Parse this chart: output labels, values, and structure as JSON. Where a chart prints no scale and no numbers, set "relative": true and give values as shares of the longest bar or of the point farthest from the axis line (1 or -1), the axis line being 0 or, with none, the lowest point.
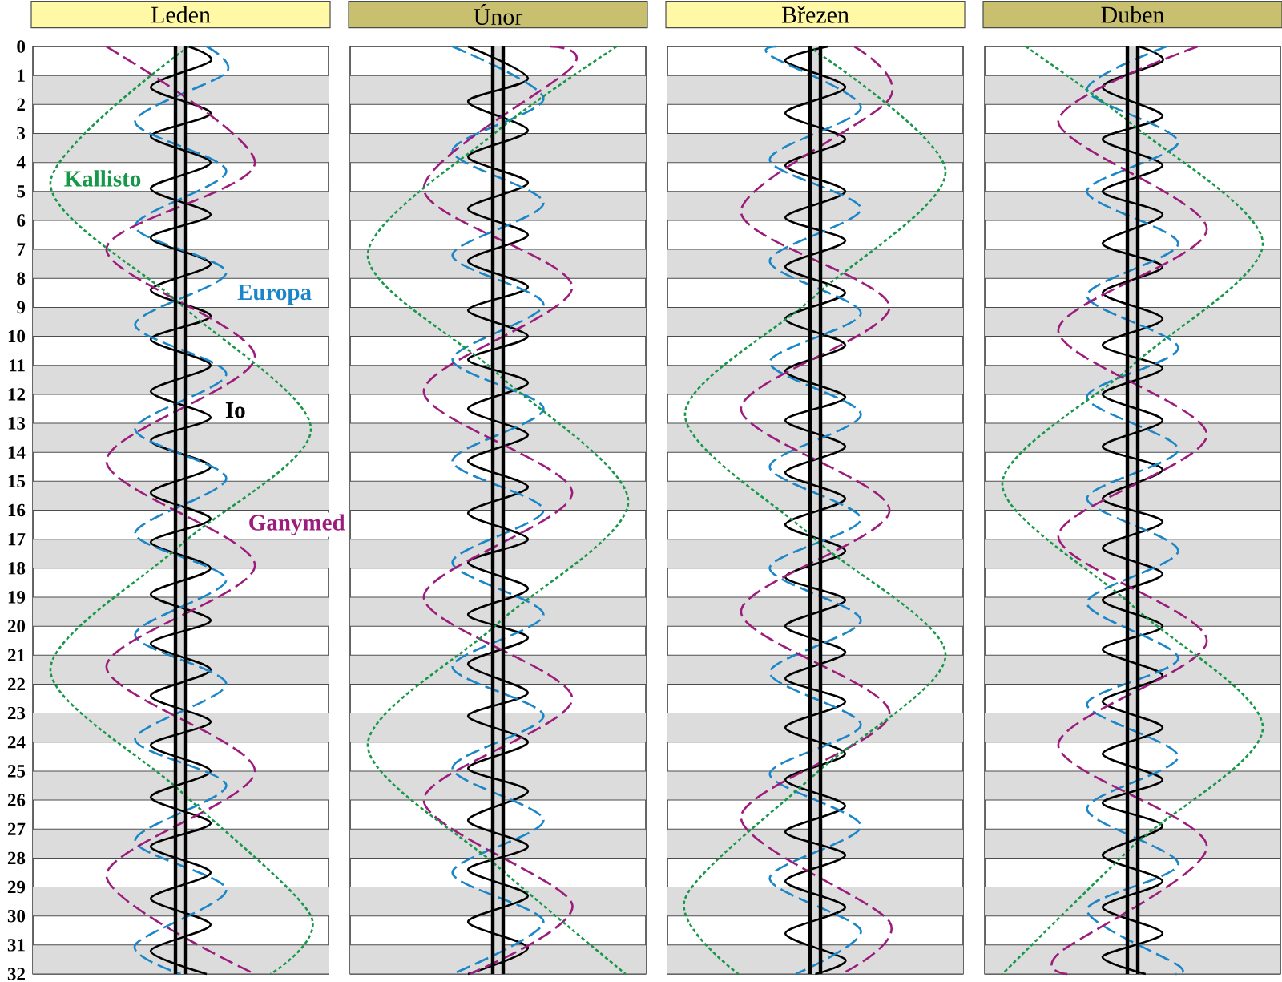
{
  "chart_data": [
    {
      "type": "line",
      "title": "Leden",
      "orientation": "horizontal",
      "relative": true,
      "ylim": [
        32,
        0
      ],
      "yticks": [
        0,
        1,
        2,
        3,
        4,
        5,
        6,
        7,
        8,
        9,
        10,
        11,
        12,
        13,
        14,
        15,
        16,
        17,
        18,
        19,
        20,
        21,
        22,
        23,
        24,
        25,
        26,
        27,
        28,
        29,
        30,
        31,
        32
      ],
      "grid": "y",
      "tick_labels": "y",
      "bands": [
        {
          "axis": "y",
          "from": 1,
          "to": 2,
          "color": "#dcdcdc"
        },
        {
          "axis": "y",
          "from": 3,
          "to": 4,
          "color": "#dcdcdc"
        },
        {
          "axis": "y",
          "from": 5,
          "to": 6,
          "color": "#dcdcdc"
        },
        {
          "axis": "y",
          "from": 7,
          "to": 8,
          "color": "#dcdcdc"
        },
        {
          "axis": "y",
          "from": 9,
          "to": 10,
          "color": "#dcdcdc"
        },
        {
          "axis": "y",
          "from": 11,
          "to": 12,
          "color": "#dcdcdc"
        },
        {
          "axis": "y",
          "from": 13,
          "to": 14,
          "color": "#dcdcdc"
        },
        {
          "axis": "y",
          "from": 15,
          "to": 16,
          "color": "#dcdcdc"
        },
        {
          "axis": "y",
          "from": 17,
          "to": 18,
          "color": "#dcdcdc"
        },
        {
          "axis": "y",
          "from": 19,
          "to": 20,
          "color": "#dcdcdc"
        },
        {
          "axis": "y",
          "from": 21,
          "to": 22,
          "color": "#dcdcdc"
        },
        {
          "axis": "y",
          "from": 23,
          "to": 24,
          "color": "#dcdcdc"
        },
        {
          "axis": "y",
          "from": 25,
          "to": 26,
          "color": "#dcdcdc"
        },
        {
          "axis": "y",
          "from": 27,
          "to": 28,
          "color": "#dcdcdc"
        },
        {
          "axis": "y",
          "from": 29,
          "to": 30,
          "color": "#dcdcdc"
        },
        {
          "axis": "y",
          "from": 31,
          "to": 32,
          "color": "#dcdcdc"
        },
        {
          "axis": "x",
          "from": 0.48,
          "to": 0.52,
          "color": "#d9d9d9"
        }
      ],
      "ref_lines": [
        {
          "axis": "x",
          "value": 0.48,
          "color": "#000000"
        },
        {
          "axis": "x",
          "value": 0.52,
          "color": "#000000"
        }
      ],
      "series": [
        {
          "name": "Io",
          "color": "#000000",
          "line_style": "solid",
          "x": [
            0,
            0.5,
            1.4,
            2.3,
            3.1,
            4.0,
            4.9,
            5.8,
            6.6,
            7.5,
            8.4,
            9.3,
            10.1,
            11.0,
            11.9,
            12.8,
            13.6,
            14.5,
            15.4,
            16.3,
            17.1,
            18.0,
            18.9,
            19.8,
            20.6,
            21.5,
            22.4,
            23.3,
            24.1,
            25.0,
            25.9,
            26.8,
            27.6,
            28.5,
            29.4,
            30.3,
            31.2,
            32
          ],
          "values": [
            0.53,
            0.615,
            0.385,
            0.615,
            0.385,
            0.615,
            0.385,
            0.615,
            0.385,
            0.615,
            0.385,
            0.615,
            0.385,
            0.615,
            0.385,
            0.615,
            0.385,
            0.615,
            0.385,
            0.615,
            0.385,
            0.615,
            0.385,
            0.615,
            0.385,
            0.615,
            0.385,
            0.615,
            0.385,
            0.615,
            0.385,
            0.615,
            0.385,
            0.615,
            0.385,
            0.615,
            0.385,
            0.6
          ]
        },
        {
          "name": "Europa",
          "color": "#1a86c8",
          "line_style": "dashed",
          "x": [
            0,
            0.9,
            2.6,
            4.3,
            6.2,
            7.8,
            9.6,
            11.3,
            13.2,
            14.9,
            16.8,
            18.4,
            20.3,
            22.0,
            23.9,
            25.5,
            27.4,
            29.1,
            31.0,
            32
          ],
          "values": [
            0.6,
            0.675,
            0.325,
            0.675,
            0.325,
            0.675,
            0.325,
            0.675,
            0.325,
            0.675,
            0.325,
            0.675,
            0.325,
            0.675,
            0.325,
            0.675,
            0.325,
            0.675,
            0.325,
            0.5
          ]
        },
        {
          "name": "Ganymed",
          "color": "#9c1c7c",
          "line_style": "dashed",
          "x": [
            0,
            4.0,
            7.0,
            10.7,
            14.3,
            17.9,
            21.4,
            25.0,
            28.6,
            32
          ],
          "values": [
            0.215,
            0.785,
            0.215,
            0.785,
            0.215,
            0.785,
            0.215,
            0.785,
            0.215,
            0.785
          ]
        },
        {
          "name": "Kallisto",
          "color": "#169848",
          "line_style": "dotted",
          "x": [
            0,
            4.7,
            8.9,
            13.2,
            17.2,
            21.5,
            25.7,
            30.0,
            32
          ],
          "values": [
            0.53,
            0,
            0.5,
            1,
            0.5,
            0,
            0.5,
            1,
            0.845
          ]
        }
      ]
    },
    {
      "type": "line",
      "title": "Únor",
      "orientation": "horizontal",
      "relative": true,
      "ylim": [
        32,
        0
      ],
      "yticks": [
        0,
        1,
        2,
        3,
        4,
        5,
        6,
        7,
        8,
        9,
        10,
        11,
        12,
        13,
        14,
        15,
        16,
        17,
        18,
        19,
        20,
        21,
        22,
        23,
        24,
        25,
        26,
        27,
        28,
        29,
        30,
        31,
        32
      ],
      "grid": "y",
      "tick_labels": false,
      "bands": [
        {
          "axis": "y",
          "from": 1,
          "to": 2,
          "color": "#dcdcdc"
        },
        {
          "axis": "y",
          "from": 3,
          "to": 4,
          "color": "#dcdcdc"
        },
        {
          "axis": "y",
          "from": 5,
          "to": 6,
          "color": "#dcdcdc"
        },
        {
          "axis": "y",
          "from": 7,
          "to": 8,
          "color": "#dcdcdc"
        },
        {
          "axis": "y",
          "from": 9,
          "to": 10,
          "color": "#dcdcdc"
        },
        {
          "axis": "y",
          "from": 11,
          "to": 12,
          "color": "#dcdcdc"
        },
        {
          "axis": "y",
          "from": 13,
          "to": 14,
          "color": "#dcdcdc"
        },
        {
          "axis": "y",
          "from": 15,
          "to": 16,
          "color": "#dcdcdc"
        },
        {
          "axis": "y",
          "from": 17,
          "to": 18,
          "color": "#dcdcdc"
        },
        {
          "axis": "y",
          "from": 19,
          "to": 20,
          "color": "#dcdcdc"
        },
        {
          "axis": "y",
          "from": 21,
          "to": 22,
          "color": "#dcdcdc"
        },
        {
          "axis": "y",
          "from": 23,
          "to": 24,
          "color": "#dcdcdc"
        },
        {
          "axis": "y",
          "from": 25,
          "to": 26,
          "color": "#dcdcdc"
        },
        {
          "axis": "y",
          "from": 27,
          "to": 28,
          "color": "#dcdcdc"
        },
        {
          "axis": "y",
          "from": 29,
          "to": 30,
          "color": "#dcdcdc"
        },
        {
          "axis": "y",
          "from": 31,
          "to": 32,
          "color": "#dcdcdc"
        },
        {
          "axis": "x",
          "from": 0.48,
          "to": 0.52,
          "color": "#d9d9d9"
        }
      ],
      "ref_lines": [
        {
          "axis": "x",
          "value": 0.48,
          "color": "#000000"
        },
        {
          "axis": "x",
          "value": 0.52,
          "color": "#000000"
        }
      ],
      "series": [
        {
          "color": "#000000",
          "line_style": "solid",
          "x": [
            0,
            1.1,
            1.9,
            2.9,
            3.8,
            4.7,
            5.6,
            6.5,
            7.4,
            8.3,
            9.1,
            10.0,
            10.8,
            11.6,
            12.5,
            13.4,
            14.3,
            15.2,
            16.1,
            17.0,
            17.8,
            18.7,
            19.6,
            20.4,
            21.3,
            22.3,
            23.1,
            24.0,
            24.9,
            25.7,
            26.7,
            27.6,
            28.4,
            29.3,
            30.2,
            31.1,
            32.0
          ],
          "values": [
            0.385,
            0.615,
            0.385,
            0.615,
            0.385,
            0.615,
            0.385,
            0.615,
            0.385,
            0.615,
            0.385,
            0.615,
            0.385,
            0.615,
            0.385,
            0.615,
            0.385,
            0.615,
            0.385,
            0.615,
            0.385,
            0.615,
            0.385,
            0.615,
            0.385,
            0.615,
            0.385,
            0.615,
            0.385,
            0.615,
            0.385,
            0.615,
            0.385,
            0.615,
            0.385,
            0.615,
            0.385
          ]
        },
        {
          "color": "#1a86c8",
          "line_style": "dashed",
          "x": [
            0,
            1.8,
            3.6,
            5.4,
            7.2,
            8.9,
            10.8,
            12.5,
            14.3,
            16.0,
            17.8,
            19.6,
            21.4,
            23.1,
            24.9,
            26.7,
            28.5,
            30.2,
            32.0
          ],
          "values": [
            0.325,
            0.675,
            0.325,
            0.675,
            0.325,
            0.675,
            0.325,
            0.675,
            0.325,
            0.675,
            0.325,
            0.675,
            0.325,
            0.675,
            0.325,
            0.675,
            0.325,
            0.675,
            0.325
          ]
        },
        {
          "color": "#9c1c7c",
          "line_style": "dashed",
          "x": [
            0,
            0.7,
            4.9,
            8.3,
            11.9,
            15.4,
            19.0,
            22.5,
            26.0,
            29.6,
            32
          ],
          "values": [
            0.7,
            0.785,
            0.215,
            0.785,
            0.215,
            0.785,
            0.215,
            0.785,
            0.215,
            0.785,
            0.39
          ]
        },
        {
          "color": "#169848",
          "line_style": "dotted",
          "x": [
            0,
            2.9,
            7.2,
            11.3,
            15.7,
            19.9,
            24.1,
            28.3,
            32
          ],
          "values": [
            0.955,
            0.5,
            0,
            0.5,
            1,
            0.5,
            0,
            0.5,
            0.99
          ]
        }
      ]
    },
    {
      "type": "line",
      "title": "Březen",
      "orientation": "horizontal",
      "relative": true,
      "ylim": [
        32,
        0
      ],
      "yticks": [
        0,
        1,
        2,
        3,
        4,
        5,
        6,
        7,
        8,
        9,
        10,
        11,
        12,
        13,
        14,
        15,
        16,
        17,
        18,
        19,
        20,
        21,
        22,
        23,
        24,
        25,
        26,
        27,
        28,
        29,
        30,
        31,
        32
      ],
      "grid": "y",
      "tick_labels": false,
      "bands": [
        {
          "axis": "y",
          "from": 1,
          "to": 2,
          "color": "#dcdcdc"
        },
        {
          "axis": "y",
          "from": 3,
          "to": 4,
          "color": "#dcdcdc"
        },
        {
          "axis": "y",
          "from": 5,
          "to": 6,
          "color": "#dcdcdc"
        },
        {
          "axis": "y",
          "from": 7,
          "to": 8,
          "color": "#dcdcdc"
        },
        {
          "axis": "y",
          "from": 9,
          "to": 10,
          "color": "#dcdcdc"
        },
        {
          "axis": "y",
          "from": 11,
          "to": 12,
          "color": "#dcdcdc"
        },
        {
          "axis": "y",
          "from": 13,
          "to": 14,
          "color": "#dcdcdc"
        },
        {
          "axis": "y",
          "from": 15,
          "to": 16,
          "color": "#dcdcdc"
        },
        {
          "axis": "y",
          "from": 17,
          "to": 18,
          "color": "#dcdcdc"
        },
        {
          "axis": "y",
          "from": 19,
          "to": 20,
          "color": "#dcdcdc"
        },
        {
          "axis": "y",
          "from": 21,
          "to": 22,
          "color": "#dcdcdc"
        },
        {
          "axis": "y",
          "from": 23,
          "to": 24,
          "color": "#dcdcdc"
        },
        {
          "axis": "y",
          "from": 25,
          "to": 26,
          "color": "#dcdcdc"
        },
        {
          "axis": "y",
          "from": 27,
          "to": 28,
          "color": "#dcdcdc"
        },
        {
          "axis": "y",
          "from": 29,
          "to": 30,
          "color": "#dcdcdc"
        },
        {
          "axis": "y",
          "from": 31,
          "to": 32,
          "color": "#dcdcdc"
        },
        {
          "axis": "x",
          "from": 0.48,
          "to": 0.52,
          "color": "#d9d9d9"
        }
      ],
      "ref_lines": [
        {
          "axis": "x",
          "value": 0.48,
          "color": "#000000"
        },
        {
          "axis": "x",
          "value": 0.52,
          "color": "#000000"
        }
      ],
      "series": [
        {
          "color": "#000000",
          "line_style": "solid",
          "x": [
            0,
            0.5,
            1.4,
            2.3,
            3.2,
            4.1,
            5.0,
            5.9,
            6.7,
            7.6,
            8.5,
            9.4,
            10.3,
            11.2,
            12.1,
            12.9,
            13.8,
            14.7,
            15.6,
            16.5,
            17.4,
            18.3,
            19.1,
            20.0,
            20.9,
            21.8,
            22.6,
            23.5,
            24.4,
            25.3,
            26.2,
            27.1,
            27.9,
            28.8,
            29.7,
            30.6,
            31.5,
            32
          ],
          "values": [
            0.55,
            0.385,
            0.615,
            0.385,
            0.615,
            0.385,
            0.615,
            0.385,
            0.615,
            0.385,
            0.615,
            0.385,
            0.615,
            0.385,
            0.615,
            0.385,
            0.615,
            0.385,
            0.615,
            0.385,
            0.615,
            0.385,
            0.615,
            0.385,
            0.615,
            0.385,
            0.615,
            0.385,
            0.615,
            0.385,
            0.615,
            0.385,
            0.615,
            0.385,
            0.615,
            0.385,
            0.615,
            0.5
          ]
        },
        {
          "color": "#1a86c8",
          "line_style": "dashed",
          "x": [
            0,
            0.3,
            2.1,
            3.9,
            5.6,
            7.4,
            9.2,
            10.9,
            12.7,
            14.5,
            16.3,
            18.0,
            19.8,
            21.6,
            23.4,
            25.1,
            26.9,
            28.7,
            30.5,
            32
          ],
          "values": [
            0.35,
            0.325,
            0.675,
            0.325,
            0.675,
            0.325,
            0.675,
            0.325,
            0.675,
            0.325,
            0.675,
            0.325,
            0.675,
            0.325,
            0.675,
            0.325,
            0.675,
            0.325,
            0.675,
            0.425
          ]
        },
        {
          "color": "#9c1c7c",
          "line_style": "dashed",
          "x": [
            0,
            1.8,
            5.7,
            9.0,
            12.5,
            16.0,
            19.5,
            23.0,
            26.6,
            30.2,
            32
          ],
          "values": [
            0.65,
            0.785,
            0.215,
            0.785,
            0.215,
            0.785,
            0.215,
            0.785,
            0.215,
            0.785,
            0.6
          ]
        },
        {
          "color": "#169848",
          "line_style": "dotted",
          "x": [
            0,
            4.3,
            8.6,
            12.7,
            17.0,
            21.0,
            25.1,
            29.4,
            32
          ],
          "values": [
            0.475,
            1,
            0.5,
            0,
            0.5,
            1,
            0.5,
            0,
            0.205
          ]
        }
      ]
    },
    {
      "type": "line",
      "title": "Duben",
      "orientation": "horizontal",
      "relative": true,
      "ylim": [
        32,
        0
      ],
      "yticks": [
        0,
        1,
        2,
        3,
        4,
        5,
        6,
        7,
        8,
        9,
        10,
        11,
        12,
        13,
        14,
        15,
        16,
        17,
        18,
        19,
        20,
        21,
        22,
        23,
        24,
        25,
        26,
        27,
        28,
        29,
        30,
        31,
        32
      ],
      "grid": "y",
      "tick_labels": false,
      "bands": [
        {
          "axis": "y",
          "from": 1,
          "to": 2,
          "color": "#dcdcdc"
        },
        {
          "axis": "y",
          "from": 3,
          "to": 4,
          "color": "#dcdcdc"
        },
        {
          "axis": "y",
          "from": 5,
          "to": 6,
          "color": "#dcdcdc"
        },
        {
          "axis": "y",
          "from": 7,
          "to": 8,
          "color": "#dcdcdc"
        },
        {
          "axis": "y",
          "from": 9,
          "to": 10,
          "color": "#dcdcdc"
        },
        {
          "axis": "y",
          "from": 11,
          "to": 12,
          "color": "#dcdcdc"
        },
        {
          "axis": "y",
          "from": 13,
          "to": 14,
          "color": "#dcdcdc"
        },
        {
          "axis": "y",
          "from": 15,
          "to": 16,
          "color": "#dcdcdc"
        },
        {
          "axis": "y",
          "from": 17,
          "to": 18,
          "color": "#dcdcdc"
        },
        {
          "axis": "y",
          "from": 19,
          "to": 20,
          "color": "#dcdcdc"
        },
        {
          "axis": "y",
          "from": 21,
          "to": 22,
          "color": "#dcdcdc"
        },
        {
          "axis": "y",
          "from": 23,
          "to": 24,
          "color": "#dcdcdc"
        },
        {
          "axis": "y",
          "from": 25,
          "to": 26,
          "color": "#dcdcdc"
        },
        {
          "axis": "y",
          "from": 27,
          "to": 28,
          "color": "#dcdcdc"
        },
        {
          "axis": "y",
          "from": 29,
          "to": 30,
          "color": "#dcdcdc"
        },
        {
          "axis": "y",
          "from": 31,
          "to": 32,
          "color": "#dcdcdc"
        },
        {
          "axis": "x",
          "from": 0.48,
          "to": 0.52,
          "color": "#d9d9d9"
        }
      ],
      "ref_lines": [
        {
          "axis": "x",
          "value": 0.48,
          "color": "#000000"
        },
        {
          "axis": "x",
          "value": 0.52,
          "color": "#000000"
        }
      ],
      "series": [
        {
          "color": "#000000",
          "line_style": "solid",
          "x": [
            0,
            0.5,
            1.4,
            2.4,
            3.2,
            4.1,
            5.0,
            5.8,
            6.8,
            7.6,
            8.5,
            9.4,
            10.3,
            11.1,
            12.0,
            12.9,
            13.8,
            14.6,
            15.6,
            16.4,
            17.3,
            18.2,
            19.1,
            20.0,
            20.8,
            21.7,
            22.6,
            23.5,
            24.4,
            25.3,
            26.1,
            26.9,
            27.9,
            28.8,
            29.7,
            30.6,
            31.4,
            32
          ],
          "values": [
            0.525,
            0.615,
            0.385,
            0.615,
            0.385,
            0.615,
            0.385,
            0.615,
            0.385,
            0.615,
            0.385,
            0.615,
            0.385,
            0.615,
            0.385,
            0.615,
            0.385,
            0.615,
            0.385,
            0.615,
            0.385,
            0.615,
            0.385,
            0.615,
            0.385,
            0.615,
            0.385,
            0.615,
            0.385,
            0.615,
            0.385,
            0.615,
            0.385,
            0.615,
            0.385,
            0.615,
            0.385,
            0.55
          ]
        },
        {
          "color": "#1a86c8",
          "line_style": "dashed",
          "x": [
            0,
            1.5,
            3.3,
            5.0,
            6.8,
            8.6,
            10.4,
            12.1,
            13.9,
            15.6,
            17.4,
            19.2,
            21.1,
            22.7,
            24.5,
            26.3,
            28.2,
            29.8,
            31.7,
            32
          ],
          "values": [
            0.63,
            0.325,
            0.675,
            0.325,
            0.675,
            0.325,
            0.675,
            0.325,
            0.675,
            0.325,
            0.675,
            0.325,
            0.675,
            0.325,
            0.675,
            0.325,
            0.675,
            0.325,
            0.675,
            0.665
          ]
        },
        {
          "color": "#9c1c7c",
          "line_style": "dashed",
          "x": [
            0,
            2.6,
            6.3,
            9.8,
            13.4,
            16.9,
            20.5,
            24.1,
            27.6,
            31.3,
            32
          ],
          "values": [
            0.75,
            0.215,
            0.785,
            0.215,
            0.785,
            0.215,
            0.785,
            0.215,
            0.785,
            0.215,
            0.25
          ]
        },
        {
          "color": "#169848",
          "line_style": "dotted",
          "x": [
            0,
            2.7,
            6.8,
            11.0,
            15.1,
            19.3,
            23.5,
            27.6,
            32
          ],
          "values": [
            0.09,
            0.5,
            1,
            0.5,
            0,
            0.5,
            1,
            0.5,
            0
          ]
        }
      ]
    }
  ]
}
